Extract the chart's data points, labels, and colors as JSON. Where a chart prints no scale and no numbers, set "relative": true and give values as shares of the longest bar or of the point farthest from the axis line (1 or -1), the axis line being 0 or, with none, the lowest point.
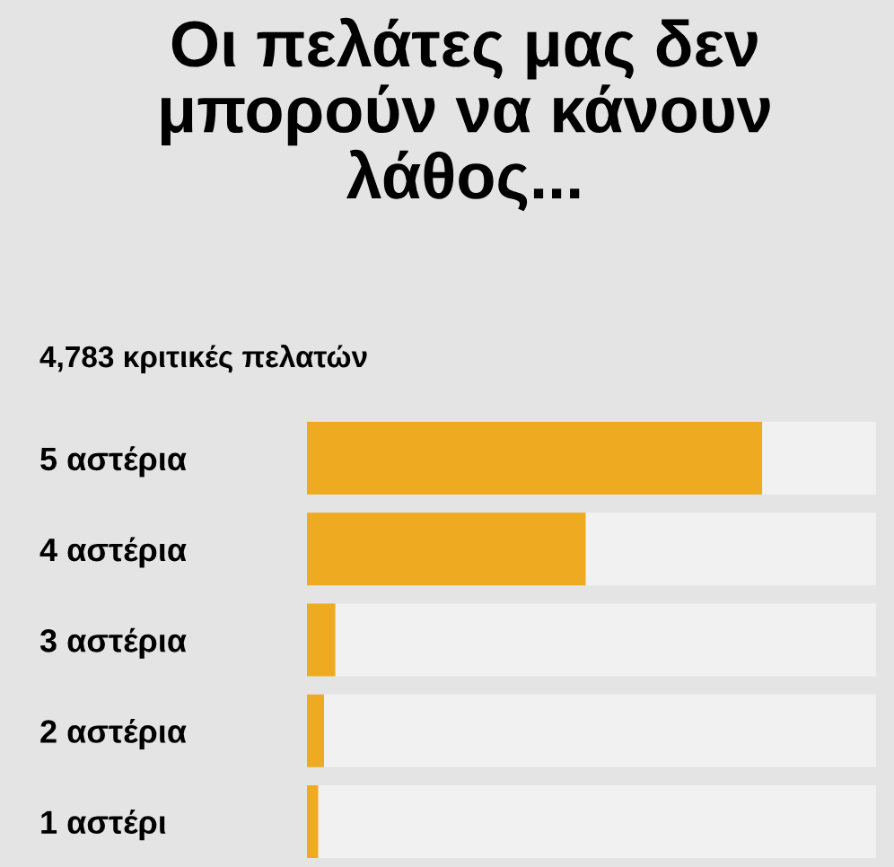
{
  "chart_data": {
    "type": "bar",
    "orientation": "horizontal",
    "stacked": true,
    "relative": true,
    "title": "Οι πελάτες μας δεν μπορούν να κάνουν λάθος...",
    "subtitle": "4,783 κριτικές πελατών",
    "categories": [
      "5 αστέρια",
      "4 αστέρια",
      "3 αστέρια",
      "2 αστέρια",
      "1 αστέρι"
    ],
    "series": [
      {
        "color": "#eeab21",
        "values": [
          0.8,
          0.49,
          0.05,
          0.03,
          0.02
        ]
      },
      {
        "color": "#f1f1f1",
        "values": [
          0.2,
          0.51,
          0.95,
          0.97,
          0.98
        ]
      }
    ],
    "grid": false,
    "legend": false
  }
}
